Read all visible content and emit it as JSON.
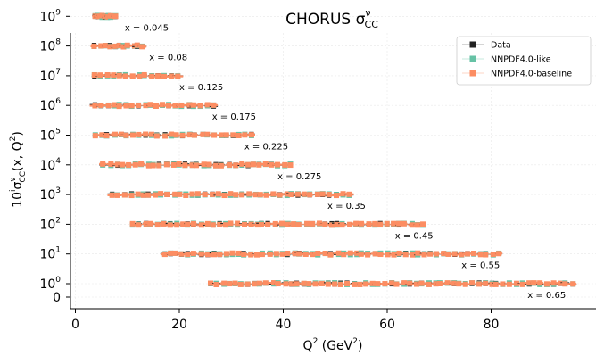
{
  "chart_data": {
    "type": "scatter",
    "title_main": "CHORUS σ",
    "title_sup": "ν",
    "title_sub": "CC",
    "xlabel_main": "Q",
    "xlabel_sup": "2",
    "xlabel_unit_pre": " (GeV",
    "xlabel_unit_sup": "2",
    "xlabel_unit_post": ")",
    "ylabel_pre": "10",
    "ylabel_sup_i": "i",
    "ylabel_sigma": "σ",
    "ylabel_sup": "ν",
    "ylabel_sub": "CC",
    "ylabel_args_pre": "(x, Q",
    "ylabel_args_sup": "2",
    "ylabel_args_post": ")",
    "xlim": [
      -1,
      98
    ],
    "x_ticks": [
      0,
      20,
      40,
      60,
      80
    ],
    "x_tick_labels": [
      "0",
      "20",
      "40",
      "60",
      "80"
    ],
    "y_ticks": [
      {
        "value": 0,
        "base": "0",
        "exp": ""
      },
      {
        "value": 1,
        "base": "10",
        "exp": "0"
      },
      {
        "value": 2,
        "base": "10",
        "exp": "1"
      },
      {
        "value": 3,
        "base": "10",
        "exp": "2"
      },
      {
        "value": 4,
        "base": "10",
        "exp": "3"
      },
      {
        "value": 5,
        "base": "10",
        "exp": "4"
      },
      {
        "value": 6,
        "base": "10",
        "exp": "5"
      },
      {
        "value": 7,
        "base": "10",
        "exp": "6"
      },
      {
        "value": 8,
        "base": "10",
        "exp": "7"
      },
      {
        "value": 9,
        "base": "10",
        "exp": "8"
      },
      {
        "value": 10,
        "base": "10",
        "exp": "9"
      }
    ],
    "grid": true,
    "legend_position": "top-right",
    "legend": [
      {
        "name": "Data",
        "color": "#222222",
        "marker": "square"
      },
      {
        "name": "NNPDF4.0-like",
        "color": "#66c2a5",
        "marker": "square"
      },
      {
        "name": "NNPDF4.0-baseline",
        "color": "#fc8d62",
        "marker": "square"
      }
    ],
    "x_bins": [
      {
        "label": "x = 0.045",
        "level": 10,
        "qmin": 3.8,
        "qmax": 7.6,
        "label_q": 9.5
      },
      {
        "label": "x = 0.08",
        "level": 9,
        "qmin": 3.8,
        "qmax": 13.0,
        "label_q": 14.2
      },
      {
        "label": "x = 0.125",
        "level": 8,
        "qmin": 3.8,
        "qmax": 19.5,
        "label_q": 20.0
      },
      {
        "label": "x = 0.175",
        "level": 7,
        "qmin": 3.8,
        "qmax": 26.5,
        "label_q": 26.3
      },
      {
        "label": "x = 0.225",
        "level": 6,
        "qmin": 3.8,
        "qmax": 34.0,
        "label_q": 32.5
      },
      {
        "label": "x = 0.275",
        "level": 5,
        "qmin": 5.5,
        "qmax": 41.5,
        "label_q": 38.9
      },
      {
        "label": "x = 0.35",
        "level": 4,
        "qmin": 7.0,
        "qmax": 52.5,
        "label_q": 48.5
      },
      {
        "label": "x = 0.45",
        "level": 3,
        "qmin": 11.0,
        "qmax": 67.0,
        "label_q": 61.5
      },
      {
        "label": "x = 0.55",
        "level": 2,
        "qmin": 17.0,
        "qmax": 81.5,
        "label_q": 74.3
      },
      {
        "label": "x = 0.65",
        "level": 1,
        "qmin": 26.0,
        "qmax": 95.5,
        "label_q": 87.0
      }
    ]
  }
}
